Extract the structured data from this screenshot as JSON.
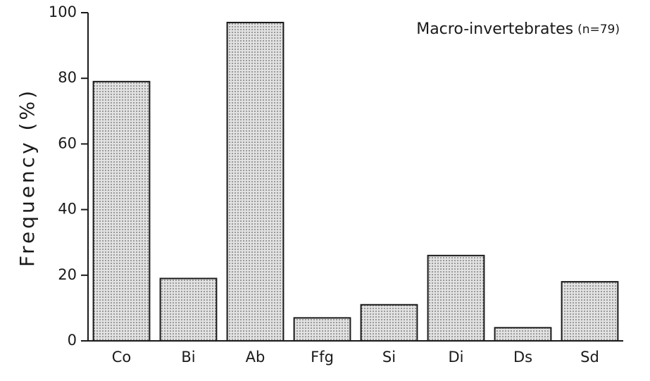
{
  "chart_data": {
    "type": "bar",
    "title": "Macro-invertebrates",
    "subtitle": "(n=79)",
    "y_label": "Frequency (%)",
    "categories": [
      "Co",
      "Bi",
      "Ab",
      "Ffg",
      "Si",
      "Di",
      "Ds",
      "Sd"
    ],
    "values": [
      79,
      19,
      97,
      7,
      11,
      26,
      4,
      18
    ],
    "color": "#d6d6d6",
    "ylim": [
      0,
      100
    ],
    "yticks": [
      0,
      20,
      40,
      60,
      80,
      100
    ],
    "grid": false
  }
}
